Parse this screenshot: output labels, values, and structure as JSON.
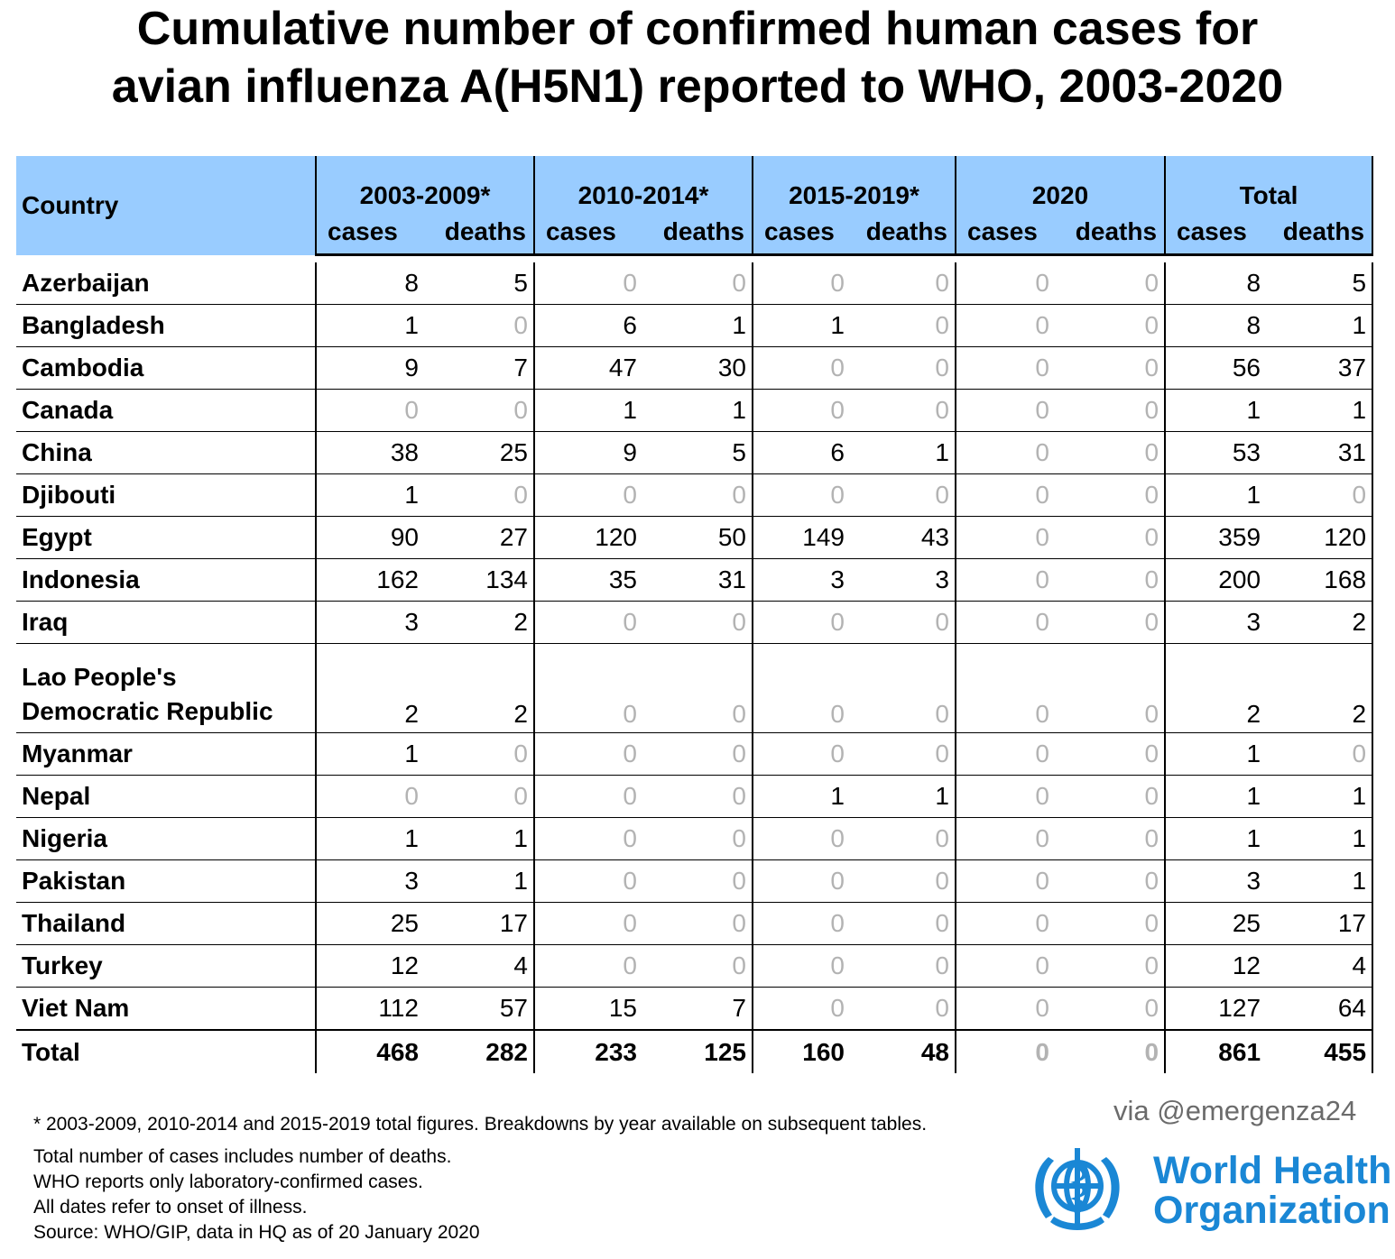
{
  "title": {
    "line1": "Cumulative number of confirmed human cases for",
    "line2": "avian influenza A(H5N1) reported to WHO, 2003-2020"
  },
  "table": {
    "country_header": "Country",
    "periods": [
      "2003-2009*",
      "2010-2014*",
      "2015-2019*",
      "2020",
      "Total"
    ],
    "cases_label": "cases",
    "deaths_label": "deaths",
    "rows": [
      {
        "country": "Azerbaijan",
        "values": [
          "8",
          "5",
          "0",
          "0",
          "0",
          "0",
          "0",
          "0",
          "8",
          "5"
        ]
      },
      {
        "country": "Bangladesh",
        "values": [
          "1",
          "0",
          "6",
          "1",
          "1",
          "0",
          "0",
          "0",
          "8",
          "1"
        ]
      },
      {
        "country": "Cambodia",
        "values": [
          "9",
          "7",
          "47",
          "30",
          "0",
          "0",
          "0",
          "0",
          "56",
          "37"
        ]
      },
      {
        "country": "Canada",
        "values": [
          "0",
          "0",
          "1",
          "1",
          "0",
          "0",
          "0",
          "0",
          "1",
          "1"
        ]
      },
      {
        "country": "China",
        "values": [
          "38",
          "25",
          "9",
          "5",
          "6",
          "1",
          "0",
          "0",
          "53",
          "31"
        ]
      },
      {
        "country": "Djibouti",
        "values": [
          "1",
          "0",
          "0",
          "0",
          "0",
          "0",
          "0",
          "0",
          "1",
          "0"
        ]
      },
      {
        "country": "Egypt",
        "values": [
          "90",
          "27",
          "120",
          "50",
          "149",
          "43",
          "0",
          "0",
          "359",
          "120"
        ]
      },
      {
        "country": "Indonesia",
        "values": [
          "162",
          "134",
          "35",
          "31",
          "3",
          "3",
          "0",
          "0",
          "200",
          "168"
        ]
      },
      {
        "country": "Iraq",
        "values": [
          "3",
          "2",
          "0",
          "0",
          "0",
          "0",
          "0",
          "0",
          "3",
          "2"
        ]
      },
      {
        "country": "Lao People's Democratic Republic",
        "country_line1": "Lao People's",
        "country_line2": "Democratic Republic",
        "values": [
          "2",
          "2",
          "0",
          "0",
          "0",
          "0",
          "0",
          "0",
          "2",
          "2"
        ]
      },
      {
        "country": "Myanmar",
        "values": [
          "1",
          "0",
          "0",
          "0",
          "0",
          "0",
          "0",
          "0",
          "1",
          "0"
        ]
      },
      {
        "country": "Nepal",
        "values": [
          "0",
          "0",
          "0",
          "0",
          "1",
          "1",
          "0",
          "0",
          "1",
          "1"
        ]
      },
      {
        "country": "Nigeria",
        "values": [
          "1",
          "1",
          "0",
          "0",
          "0",
          "0",
          "0",
          "0",
          "1",
          "1"
        ]
      },
      {
        "country": "Pakistan",
        "values": [
          "3",
          "1",
          "0",
          "0",
          "0",
          "0",
          "0",
          "0",
          "3",
          "1"
        ]
      },
      {
        "country": "Thailand",
        "values": [
          "25",
          "17",
          "0",
          "0",
          "0",
          "0",
          "0",
          "0",
          "25",
          "17"
        ]
      },
      {
        "country": "Turkey",
        "values": [
          "12",
          "4",
          "0",
          "0",
          "0",
          "0",
          "0",
          "0",
          "12",
          "4"
        ]
      },
      {
        "country": "Viet Nam",
        "values": [
          "112",
          "57",
          "15",
          "7",
          "0",
          "0",
          "0",
          "0",
          "127",
          "64"
        ]
      }
    ],
    "total": {
      "country": "Total",
      "values": [
        "468",
        "282",
        "233",
        "125",
        "160",
        "48",
        "0",
        "0",
        "861",
        "455"
      ]
    }
  },
  "footnotes": {
    "asterisk": "* 2003-2009, 2010-2014 and 2015-2019 total figures. Breakdowns by year available on subsequent tables.",
    "line1": "Total number of cases includes number of deaths.",
    "line2": "WHO reports only laboratory-confirmed cases.",
    "line3": "All dates refer to onset of illness.",
    "line4": "Source: WHO/GIP, data in HQ as of 20 January 2020"
  },
  "via": "via @emergenza24",
  "logo": {
    "icon": "who-emblem-icon",
    "line1": "World Health",
    "line2": "Organization",
    "color": "#1a87d5"
  },
  "colors": {
    "header_bg": "#99ccff",
    "zero_text": "#b3b3b3"
  }
}
